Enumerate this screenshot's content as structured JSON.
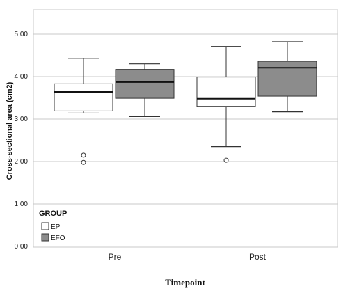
{
  "chart_data": {
    "type": "boxplot",
    "title": "",
    "xlabel": "Timepoint",
    "ylabel": "Cross-sectional area (cm2)",
    "ylim": [
      0,
      5.5
    ],
    "y_ticks": [
      "0.00",
      "1.00",
      "2.00",
      "3.00",
      "4.00",
      "5.00"
    ],
    "grid": "horizontal",
    "categories": [
      "Pre",
      "Post"
    ],
    "legend": {
      "title": "GROUP",
      "placement": "bottom-left inside plot",
      "entries": [
        {
          "label": "EP",
          "color": "#ffffff"
        },
        {
          "label": "EFO",
          "color": "#8c8c8c"
        }
      ]
    },
    "series": [
      {
        "name": "EP",
        "color": "#ffffff",
        "boxes": [
          {
            "category": "Pre",
            "min": 3.14,
            "q1": 3.19,
            "median": 3.64,
            "q3": 3.83,
            "max": 4.43,
            "outliers": [
              2.15,
              1.98
            ]
          },
          {
            "category": "Post",
            "min": 2.35,
            "q1": 3.3,
            "median": 3.48,
            "q3": 3.99,
            "max": 4.71,
            "outliers": [
              2.03
            ]
          }
        ]
      },
      {
        "name": "EFO",
        "color": "#8c8c8c",
        "boxes": [
          {
            "category": "Pre",
            "min": 3.06,
            "q1": 3.49,
            "median": 3.87,
            "q3": 4.17,
            "max": 4.3,
            "outliers": []
          },
          {
            "category": "Post",
            "min": 3.17,
            "q1": 3.54,
            "median": 4.21,
            "q3": 4.36,
            "max": 4.82,
            "outliers": []
          }
        ]
      }
    ]
  }
}
